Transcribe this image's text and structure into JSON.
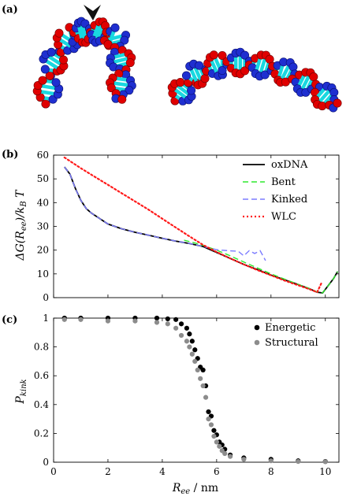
{
  "panels": {
    "a": {
      "label": "(a)"
    },
    "b": {
      "label": "(b)"
    },
    "c": {
      "label": "(c)"
    }
  },
  "colors": {
    "strand_a": "#1f2fd0",
    "strand_b": "#e00000",
    "bases": "#19d8e0",
    "oxdna": "#000000",
    "bent": "#2ee82e",
    "kinked": "#7b7bff",
    "wlc": "#ff1a1a",
    "energetic": "#000000",
    "structural": "#8c8c8c"
  },
  "chart_data": [
    {
      "panel": "b",
      "type": "line",
      "xlabel": "",
      "ylabel": "ΔG(Ree)/kBT",
      "xlim": [
        0,
        10.5
      ],
      "ylim": [
        0,
        60
      ],
      "xticks": [
        "0",
        "2",
        "4",
        "6",
        "8",
        "10"
      ],
      "yticks": [
        "0",
        "10",
        "20",
        "30",
        "40",
        "50",
        "60"
      ],
      "legend_position": "top-right",
      "series": [
        {
          "name": "oxDNA",
          "style": "solid",
          "color": "#000000",
          "x": [
            0.4,
            0.6,
            0.8,
            1.0,
            1.2,
            1.4,
            1.6,
            2.0,
            2.5,
            3.0,
            3.5,
            4.0,
            4.5,
            5.0,
            5.5,
            5.8,
            6.2,
            6.6,
            7.0,
            7.5,
            8.0,
            8.5,
            9.0,
            9.4,
            9.7,
            9.9,
            10.1,
            10.3,
            10.45
          ],
          "y": [
            55,
            52,
            46,
            41,
            37.5,
            35.5,
            34,
            31,
            29,
            27.5,
            26.3,
            25,
            23.8,
            22.8,
            21.5,
            20,
            18,
            16,
            14,
            11.8,
            9.5,
            7.5,
            5.5,
            3.8,
            2.3,
            2,
            5,
            8,
            11
          ]
        },
        {
          "name": "Bent",
          "style": "dashed",
          "color": "#2ee82e",
          "x": [
            4.8,
            5.2,
            5.6,
            6.0,
            6.5,
            7.0,
            7.5,
            8.0,
            8.5,
            9.0,
            9.4,
            9.7,
            9.9,
            10.1,
            10.3,
            10.45
          ],
          "y": [
            24.2,
            23,
            21.6,
            20,
            17.6,
            15,
            12.5,
            10,
            7.8,
            5.6,
            3.9,
            2.4,
            2,
            5,
            8,
            11
          ]
        },
        {
          "name": "Kinked",
          "style": "dashed",
          "color": "#7b7bff",
          "x": [
            0.4,
            0.6,
            0.8,
            1.0,
            1.2,
            1.4,
            1.6,
            2.0,
            2.5,
            3.0,
            3.5,
            4.0,
            4.5,
            5.0,
            5.5,
            6.0,
            6.4,
            6.8,
            7.0,
            7.2,
            7.4,
            7.6,
            7.8
          ],
          "y": [
            55,
            52,
            46,
            41,
            37.5,
            35.5,
            34,
            31,
            29,
            27.5,
            26.3,
            25,
            23.8,
            22.8,
            21.5,
            20.2,
            19.8,
            19.5,
            17.6,
            19.8,
            18.6,
            19.8,
            15.6
          ]
        },
        {
          "name": "WLC",
          "style": "dotted",
          "color": "#ff1a1a",
          "x": [
            0.4,
            1.0,
            1.5,
            2.0,
            2.5,
            3.0,
            3.5,
            4.0,
            4.5,
            5.0,
            5.5,
            6.0,
            6.5,
            7.0,
            7.5,
            8.0,
            8.5,
            9.0,
            9.4,
            9.7,
            9.85
          ],
          "y": [
            59,
            54.5,
            51,
            47.5,
            44,
            40.5,
            37,
            33.2,
            29.5,
            25.8,
            22.2,
            19.2,
            16.5,
            14,
            11.6,
            9.4,
            7.2,
            5.2,
            3.6,
            2.3,
            6
          ]
        }
      ]
    },
    {
      "panel": "c",
      "type": "scatter",
      "xlabel": "Ree / nm",
      "ylabel": "Pkink",
      "xlim": [
        0,
        10.5
      ],
      "ylim": [
        0,
        1
      ],
      "xticks": [
        "0",
        "2",
        "4",
        "6",
        "8",
        "10"
      ],
      "yticks": [
        "0",
        "0.2",
        "0.4",
        "0.6",
        "0.8",
        "1"
      ],
      "legend_position": "top-right",
      "series": [
        {
          "name": "Energetic",
          "color": "#000000",
          "x": [
            0.4,
            1.0,
            2.0,
            3.0,
            3.8,
            4.2,
            4.5,
            4.7,
            4.9,
            5.0,
            5.1,
            5.2,
            5.3,
            5.4,
            5.5,
            5.6,
            5.7,
            5.8,
            5.9,
            6.0,
            6.1,
            6.2,
            6.3,
            6.5,
            7.0,
            8.0,
            9.0,
            10.0
          ],
          "y": [
            1.0,
            1.0,
            1.0,
            1.0,
            1.0,
            0.995,
            0.99,
            0.96,
            0.93,
            0.89,
            0.84,
            0.78,
            0.72,
            0.66,
            0.64,
            0.53,
            0.35,
            0.32,
            0.22,
            0.19,
            0.14,
            0.12,
            0.09,
            0.05,
            0.03,
            0.02,
            0.01,
            0.005
          ]
        },
        {
          "name": "Structural",
          "color": "#8c8c8c",
          "x": [
            0.4,
            1.0,
            2.0,
            3.0,
            3.8,
            4.2,
            4.5,
            4.7,
            4.9,
            5.0,
            5.1,
            5.2,
            5.3,
            5.4,
            5.5,
            5.6,
            5.7,
            5.8,
            5.9,
            6.0,
            6.1,
            6.2,
            6.3,
            6.5,
            7.0,
            8.0,
            9.0,
            10.0
          ],
          "y": [
            0.99,
            0.99,
            0.98,
            0.98,
            0.97,
            0.96,
            0.93,
            0.88,
            0.84,
            0.8,
            0.75,
            0.7,
            0.64,
            0.58,
            0.53,
            0.45,
            0.3,
            0.26,
            0.18,
            0.14,
            0.11,
            0.08,
            0.06,
            0.04,
            0.02,
            0.01,
            0.005,
            0.003
          ]
        }
      ]
    }
  ]
}
